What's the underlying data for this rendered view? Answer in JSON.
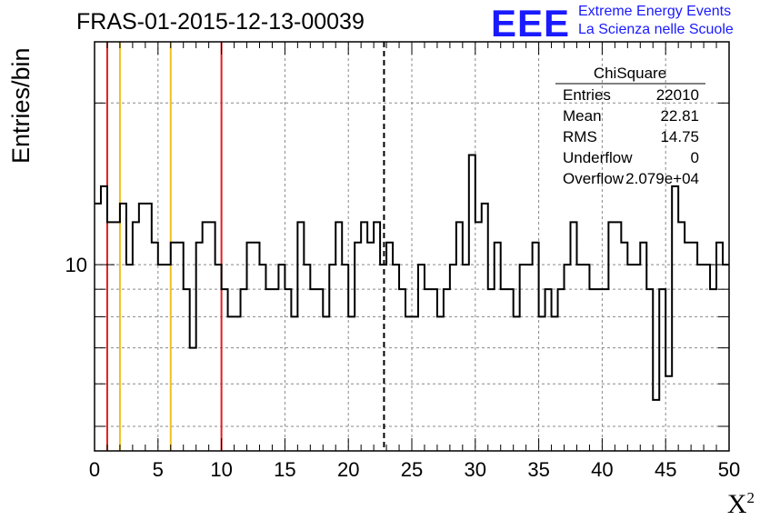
{
  "header": {
    "title": "FRAS-01-2015-12-13-00039",
    "logo_text": "EEE",
    "logo_line1": "Extreme Energy Events",
    "logo_line2": "La Scienza nelle Scuole",
    "logo_color": "#1a1aff"
  },
  "stats": {
    "name": "ChiSquare",
    "rows": [
      {
        "label": "Entries",
        "value": "22010"
      },
      {
        "label": "Mean",
        "value": "22.81"
      },
      {
        "label": "RMS",
        "value": "14.75"
      },
      {
        "label": "Underflow",
        "value": "0"
      },
      {
        "label": "Overflow",
        "value": "2.079e+04"
      }
    ]
  },
  "chart_data": {
    "type": "histogram",
    "title": "FRAS-01-2015-12-13-00039",
    "xlabel": "X",
    "xlabel_superscript": "2",
    "ylabel": "Entries/bin",
    "x_range": [
      0,
      50
    ],
    "y_scale": "log",
    "y_range": [
      4.5,
      26
    ],
    "y_tick_label": "10",
    "bin_width": 0.5,
    "x_ticks": [
      "0",
      "5",
      "10",
      "15",
      "20",
      "25",
      "30",
      "35",
      "40",
      "45",
      "50"
    ],
    "grid": true,
    "values": [
      13,
      14,
      12,
      12,
      13,
      10,
      12,
      13,
      13,
      11,
      10,
      10,
      11,
      11,
      9,
      7,
      11,
      12,
      12,
      10,
      9,
      8,
      8,
      9,
      11,
      11,
      10,
      9,
      9,
      10,
      9,
      8,
      12,
      10,
      9,
      9,
      8,
      10,
      12,
      10,
      8,
      11,
      12,
      11,
      12,
      10,
      11,
      10,
      9,
      8,
      8,
      10,
      9,
      9,
      8,
      9,
      10,
      12,
      10,
      16,
      12,
      13,
      9,
      11,
      9,
      9,
      8,
      10,
      10,
      11,
      8,
      9,
      8,
      9,
      10,
      12,
      10,
      10,
      9,
      9,
      9,
      12,
      12,
      11,
      10,
      10,
      11,
      9,
      5.6,
      9,
      6.2,
      14,
      12,
      11,
      11,
      10,
      10,
      9,
      11,
      10
    ],
    "vertical_lines": [
      {
        "x": 1,
        "color": "#e02020",
        "style": "solid"
      },
      {
        "x": 2,
        "color": "#f0c020",
        "style": "solid"
      },
      {
        "x": 6,
        "color": "#f0c020",
        "style": "solid"
      },
      {
        "x": 10,
        "color": "#e02020",
        "style": "solid"
      },
      {
        "x": 22.81,
        "color": "#000000",
        "style": "dashed"
      }
    ]
  }
}
